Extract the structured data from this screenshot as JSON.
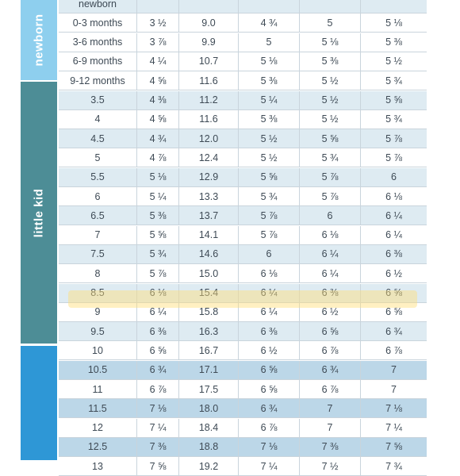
{
  "groups": [
    {
      "label": "newborn",
      "color": "#8ecfee"
    },
    {
      "label": "little kid",
      "color": "#4d8d96"
    },
    {
      "label": "",
      "color": "#2e97d6"
    }
  ],
  "rows": [
    {
      "cells": [
        "newborn",
        "",
        "",
        "",
        "",
        ""
      ],
      "group": 0,
      "shade": "light"
    },
    {
      "cells": [
        "0-3 months",
        "3 ½",
        "9.0",
        "4 ¾",
        "5",
        "5 ⅛"
      ],
      "group": 0,
      "shade": "plain"
    },
    {
      "cells": [
        "3-6 months",
        "3 ⅞",
        "9.9",
        "5",
        "5 ⅛",
        "5 ⅜"
      ],
      "group": 0,
      "shade": "plain"
    },
    {
      "cells": [
        "6-9 months",
        "4 ¼",
        "10.7",
        "5 ⅛",
        "5 ⅜",
        "5 ½"
      ],
      "group": 0,
      "shade": "plain"
    },
    {
      "cells": [
        "9-12 months",
        "4 ⅝",
        "11.6",
        "5 ⅜",
        "5 ½",
        "5 ¾"
      ],
      "group": 0,
      "shade": "plain"
    },
    {
      "cells": [
        "3.5",
        "4 ⅜",
        "11.2",
        "5 ¼",
        "5 ½",
        "5 ⅝"
      ],
      "group": 1,
      "shade": "light"
    },
    {
      "cells": [
        "4",
        "4 ⅝",
        "11.6",
        "5 ⅜",
        "5 ½",
        "5 ¾"
      ],
      "group": 1,
      "shade": "plain"
    },
    {
      "cells": [
        "4.5",
        "4 ¾",
        "12.0",
        "5 ½",
        "5 ⅝",
        "5 ⅞"
      ],
      "group": 1,
      "shade": "light"
    },
    {
      "cells": [
        "5",
        "4 ⅞",
        "12.4",
        "5 ½",
        "5 ¾",
        "5 ⅞"
      ],
      "group": 1,
      "shade": "plain"
    },
    {
      "cells": [
        "5.5",
        "5 ⅛",
        "12.9",
        "5 ⅝",
        "5 ⅞",
        "6"
      ],
      "group": 1,
      "shade": "light"
    },
    {
      "cells": [
        "6",
        "5 ¼",
        "13.3",
        "5 ¾",
        "5 ⅞",
        "6 ⅛"
      ],
      "group": 1,
      "shade": "plain"
    },
    {
      "cells": [
        "6.5",
        "5 ⅜",
        "13.7",
        "5 ⅞",
        "6",
        "6 ¼"
      ],
      "group": 1,
      "shade": "light"
    },
    {
      "cells": [
        "7",
        "5 ⅝",
        "14.1",
        "5 ⅞",
        "6 ⅛",
        "6 ¼"
      ],
      "group": 1,
      "shade": "plain"
    },
    {
      "cells": [
        "7.5",
        "5 ¾",
        "14.6",
        "6",
        "6 ¼",
        "6 ⅜"
      ],
      "group": 1,
      "shade": "light"
    },
    {
      "cells": [
        "8",
        "5 ⅞",
        "15.0",
        "6 ⅛",
        "6 ¼",
        "6 ½"
      ],
      "group": 1,
      "shade": "plain"
    },
    {
      "cells": [
        "8.5",
        "6 ⅛",
        "15.4",
        "6 ¼",
        "6 ⅜",
        "6 ⅝"
      ],
      "group": 1,
      "shade": "light"
    },
    {
      "cells": [
        "9",
        "6 ¼",
        "15.8",
        "6 ¼",
        "6 ½",
        "6 ⅝"
      ],
      "group": 1,
      "shade": "plain",
      "highlighted": true
    },
    {
      "cells": [
        "9.5",
        "6 ⅜",
        "16.3",
        "6 ⅜",
        "6 ⅝",
        "6 ¾"
      ],
      "group": 1,
      "shade": "light"
    },
    {
      "cells": [
        "10",
        "6 ⅝",
        "16.7",
        "6 ½",
        "6 ⅞",
        "6 ⅞"
      ],
      "group": 1,
      "shade": "plain"
    },
    {
      "cells": [
        "10.5",
        "6 ¾",
        "17.1",
        "6 ⅝",
        "6 ¾",
        "7"
      ],
      "group": 2,
      "shade": "dark"
    },
    {
      "cells": [
        "11",
        "6 ⅞",
        "17.5",
        "6 ⅝",
        "6 ⅞",
        "7"
      ],
      "group": 2,
      "shade": "plain"
    },
    {
      "cells": [
        "11.5",
        "7 ⅛",
        "18.0",
        "6 ¾",
        "7",
        "7 ⅛"
      ],
      "group": 2,
      "shade": "dark"
    },
    {
      "cells": [
        "12",
        "7 ¼",
        "18.4",
        "6 ⅞",
        "7",
        "7 ¼"
      ],
      "group": 2,
      "shade": "plain"
    },
    {
      "cells": [
        "12.5",
        "7 ⅜",
        "18.8",
        "7 ⅛",
        "7 ⅜",
        "7 ⅝"
      ],
      "group": 2,
      "shade": "dark"
    },
    {
      "cells": [
        "13",
        "7 ⅝",
        "19.2",
        "7 ¼",
        "7 ½",
        "7 ¾"
      ],
      "group": 2,
      "shade": "plain"
    }
  ]
}
